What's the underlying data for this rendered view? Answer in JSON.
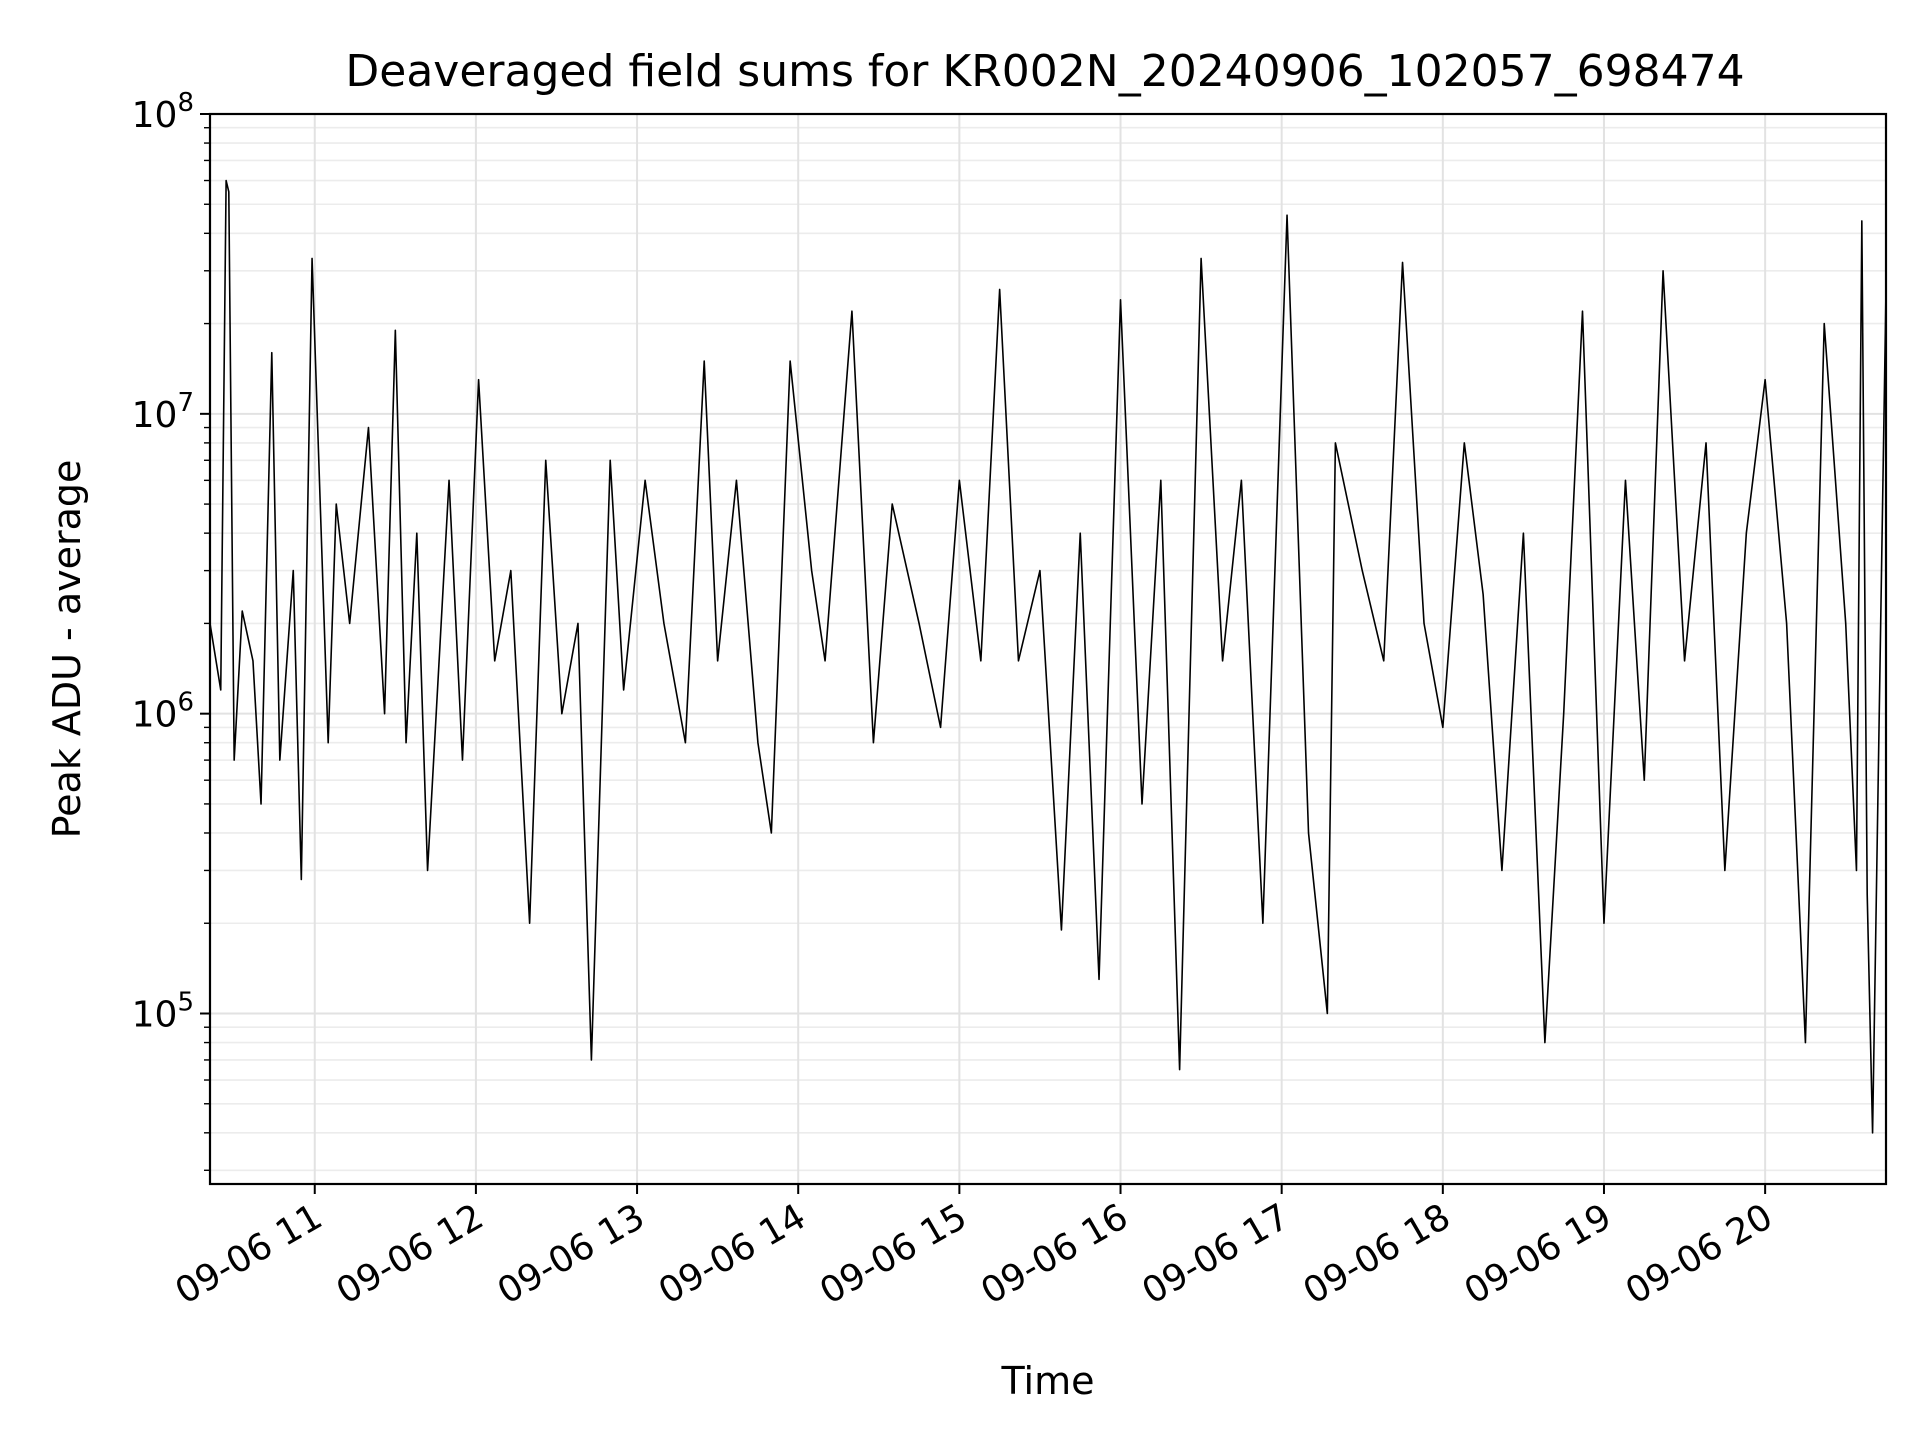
{
  "chart_data": {
    "type": "line",
    "title": "Deaveraged field sums for KR002N_20240906_102057_698474",
    "xlabel": "Time",
    "ylabel": "Peak ADU - average",
    "x_scale": "time",
    "y_scale": "log",
    "xlim": [
      "2024-09-06T10:21:00",
      "2024-09-06T20:45:00"
    ],
    "ylim": [
      27000,
      100000000
    ],
    "grid": true,
    "legend": "none",
    "x_ticks": [
      {
        "value": "2024-09-06T11:00:00",
        "label": "09-06 11"
      },
      {
        "value": "2024-09-06T12:00:00",
        "label": "09-06 12"
      },
      {
        "value": "2024-09-06T13:00:00",
        "label": "09-06 13"
      },
      {
        "value": "2024-09-06T14:00:00",
        "label": "09-06 14"
      },
      {
        "value": "2024-09-06T15:00:00",
        "label": "09-06 15"
      },
      {
        "value": "2024-09-06T16:00:00",
        "label": "09-06 16"
      },
      {
        "value": "2024-09-06T17:00:00",
        "label": "09-06 17"
      },
      {
        "value": "2024-09-06T18:00:00",
        "label": "09-06 18"
      },
      {
        "value": "2024-09-06T19:00:00",
        "label": "09-06 19"
      },
      {
        "value": "2024-09-06T20:00:00",
        "label": "09-06 20"
      }
    ],
    "y_ticks": [
      {
        "value": 100000,
        "base": "10",
        "exp": "5"
      },
      {
        "value": 1000000,
        "base": "10",
        "exp": "6"
      },
      {
        "value": 10000000,
        "base": "10",
        "exp": "7"
      },
      {
        "value": 100000000,
        "base": "10",
        "exp": "8"
      }
    ],
    "series_color": "#000000",
    "series": [
      {
        "x": [
          "2024-09-06T10:21:00",
          "2024-09-06T10:25:00",
          "2024-09-06T10:27:00",
          "2024-09-06T10:28:00",
          "2024-09-06T10:30:00",
          "2024-09-06T10:33:00",
          "2024-09-06T10:37:00",
          "2024-09-06T10:40:00",
          "2024-09-06T10:44:00",
          "2024-09-06T10:47:00",
          "2024-09-06T10:52:00",
          "2024-09-06T10:55:00",
          "2024-09-06T10:59:00",
          "2024-09-06T11:05:00",
          "2024-09-06T11:08:00",
          "2024-09-06T11:13:00",
          "2024-09-06T11:20:00",
          "2024-09-06T11:26:00",
          "2024-09-06T11:30:00",
          "2024-09-06T11:34:00",
          "2024-09-06T11:38:00",
          "2024-09-06T11:42:00",
          "2024-09-06T11:50:00",
          "2024-09-06T11:55:00",
          "2024-09-06T12:01:00",
          "2024-09-06T12:07:00",
          "2024-09-06T12:13:00",
          "2024-09-06T12:20:00",
          "2024-09-06T12:26:00",
          "2024-09-06T12:32:00",
          "2024-09-06T12:38:00",
          "2024-09-06T12:43:00",
          "2024-09-06T12:50:00",
          "2024-09-06T12:55:00",
          "2024-09-06T13:03:00",
          "2024-09-06T13:10:00",
          "2024-09-06T13:18:00",
          "2024-09-06T13:25:00",
          "2024-09-06T13:30:00",
          "2024-09-06T13:37:00",
          "2024-09-06T13:45:00",
          "2024-09-06T13:50:00",
          "2024-09-06T13:57:00",
          "2024-09-06T14:05:00",
          "2024-09-06T14:10:00",
          "2024-09-06T14:20:00",
          "2024-09-06T14:28:00",
          "2024-09-06T14:35:00",
          "2024-09-06T14:45:00",
          "2024-09-06T14:53:00",
          "2024-09-06T15:00:00",
          "2024-09-06T15:08:00",
          "2024-09-06T15:15:00",
          "2024-09-06T15:22:00",
          "2024-09-06T15:30:00",
          "2024-09-06T15:38:00",
          "2024-09-06T15:45:00",
          "2024-09-06T15:52:00",
          "2024-09-06T16:00:00",
          "2024-09-06T16:08:00",
          "2024-09-06T16:15:00",
          "2024-09-06T16:22:00",
          "2024-09-06T16:30:00",
          "2024-09-06T16:38:00",
          "2024-09-06T16:45:00",
          "2024-09-06T16:53:00",
          "2024-09-06T17:02:00",
          "2024-09-06T17:10:00",
          "2024-09-06T17:17:00",
          "2024-09-06T17:20:00",
          "2024-09-06T17:30:00",
          "2024-09-06T17:38:00",
          "2024-09-06T17:45:00",
          "2024-09-06T17:53:00",
          "2024-09-06T18:00:00",
          "2024-09-06T18:08:00",
          "2024-09-06T18:15:00",
          "2024-09-06T18:22:00",
          "2024-09-06T18:30:00",
          "2024-09-06T18:38:00",
          "2024-09-06T18:45:00",
          "2024-09-06T18:52:00",
          "2024-09-06T19:00:00",
          "2024-09-06T19:08:00",
          "2024-09-06T19:15:00",
          "2024-09-06T19:22:00",
          "2024-09-06T19:30:00",
          "2024-09-06T19:38:00",
          "2024-09-06T19:45:00",
          "2024-09-06T19:53:00",
          "2024-09-06T20:00:00",
          "2024-09-06T20:08:00",
          "2024-09-06T20:15:00",
          "2024-09-06T20:22:00",
          "2024-09-06T20:30:00",
          "2024-09-06T20:34:00",
          "2024-09-06T20:36:00",
          "2024-09-06T20:38:00",
          "2024-09-06T20:40:00",
          "2024-09-06T20:45:00"
        ],
        "y": [
          2000000,
          1200000,
          60000000,
          55000000,
          700000,
          2200000,
          1500000,
          500000,
          16000000,
          700000,
          3000000,
          280000,
          33000000,
          800000,
          5000000,
          2000000,
          9000000,
          1000000,
          19000000,
          800000,
          4000000,
          300000,
          6000000,
          700000,
          13000000,
          1500000,
          3000000,
          200000,
          7000000,
          1000000,
          2000000,
          70000,
          7000000,
          1200000,
          6000000,
          2000000,
          800000,
          15000000,
          1500000,
          6000000,
          800000,
          400000,
          15000000,
          3000000,
          1500000,
          22000000,
          800000,
          5000000,
          2000000,
          900000,
          6000000,
          1500000,
          26000000,
          1500000,
          3000000,
          190000,
          4000000,
          130000,
          24000000,
          500000,
          6000000,
          65000,
          33000000,
          1500000,
          6000000,
          200000,
          46000000,
          400000,
          100000,
          8000000,
          3000000,
          1500000,
          32000000,
          2000000,
          900000,
          8000000,
          2500000,
          300000,
          4000000,
          80000,
          1000000,
          22000000,
          200000,
          6000000,
          600000,
          30000000,
          1500000,
          8000000,
          300000,
          4000000,
          13000000,
          2000000,
          80000,
          20000000,
          2000000,
          300000,
          44000000,
          250000,
          40000,
          26000000
        ]
      }
    ]
  }
}
